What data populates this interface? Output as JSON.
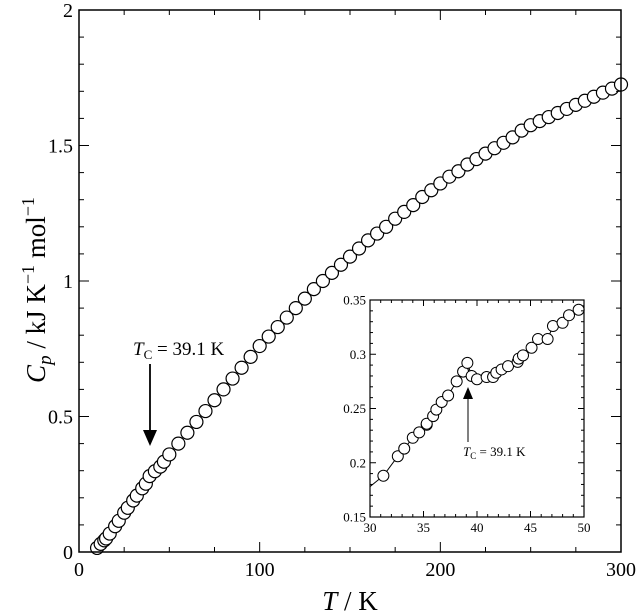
{
  "chart_data": [
    {
      "type": "scatter",
      "xlabel_var": "T",
      "xlabel_unit": "K",
      "ylabel_var": "C",
      "ylabel_sub": "p",
      "ylabel_unit_parts": [
        "kJ K",
        "−1",
        " mol",
        "−1"
      ],
      "xlim": [
        0,
        300
      ],
      "ylim": [
        0,
        2
      ],
      "xticks": [
        "0",
        "100",
        "200",
        "300"
      ],
      "xtick_values": [
        0,
        100,
        200,
        300
      ],
      "yticks": [
        "0",
        "0.5",
        "1",
        "1.5",
        "2"
      ],
      "ytick_values": [
        0,
        0.5,
        1,
        1.5,
        2
      ],
      "grid": false,
      "marker": "open-circle",
      "annotation": {
        "var": "T",
        "sub": "C",
        "text": " = 39.1 K",
        "x": 39.1
      },
      "x": [
        10,
        12,
        14,
        15,
        17,
        20,
        22,
        25,
        27,
        30,
        32,
        35,
        37,
        39.1,
        42,
        45,
        47,
        50,
        55,
        60,
        65,
        70,
        75,
        80,
        85,
        90,
        95,
        100,
        105,
        110,
        115,
        120,
        125,
        130,
        135,
        140,
        145,
        150,
        155,
        160,
        165,
        170,
        175,
        180,
        185,
        190,
        195,
        200,
        205,
        210,
        215,
        220,
        225,
        230,
        235,
        240,
        245,
        250,
        255,
        260,
        265,
        270,
        275,
        280,
        285,
        290,
        295,
        300
      ],
      "y": [
        0.015,
        0.03,
        0.043,
        0.05,
        0.068,
        0.095,
        0.115,
        0.145,
        0.163,
        0.19,
        0.208,
        0.235,
        0.252,
        0.28,
        0.298,
        0.315,
        0.333,
        0.36,
        0.4,
        0.44,
        0.48,
        0.52,
        0.56,
        0.6,
        0.64,
        0.68,
        0.72,
        0.76,
        0.795,
        0.83,
        0.865,
        0.9,
        0.935,
        0.97,
        1.0,
        1.03,
        1.06,
        1.09,
        1.12,
        1.15,
        1.175,
        1.2,
        1.23,
        1.255,
        1.28,
        1.31,
        1.335,
        1.36,
        1.385,
        1.405,
        1.43,
        1.45,
        1.47,
        1.49,
        1.51,
        1.53,
        1.555,
        1.575,
        1.59,
        1.605,
        1.62,
        1.635,
        1.65,
        1.665,
        1.68,
        1.695,
        1.71,
        1.725
      ]
    },
    {
      "type": "scatter",
      "role": "inset",
      "xlim": [
        30,
        50
      ],
      "ylim": [
        0.15,
        0.35
      ],
      "xticks": [
        "30",
        "35",
        "40",
        "45",
        "50"
      ],
      "xtick_values": [
        30,
        35,
        40,
        45,
        50
      ],
      "yticks": [
        "0.15",
        "0.2",
        "0.25",
        "0.3",
        "0.35"
      ],
      "ytick_values": [
        0.15,
        0.2,
        0.25,
        0.3,
        0.35
      ],
      "marker": "open-circle",
      "line": "solid",
      "annotation": {
        "var": "T",
        "sub": "C",
        "text": " = 39.1 K",
        "x": 39.1
      },
      "x": [
        31.25,
        32.6,
        33.2,
        34.0,
        34.6,
        35.3,
        35.3,
        35.9,
        36.2,
        36.7,
        37.3,
        38.1,
        38.7,
        39.1,
        39.5,
        40.0,
        40.9,
        41.5,
        41.8,
        42.3,
        42.9,
        43.8,
        43.9,
        44.3,
        45.1,
        45.7,
        46.6,
        47.1,
        48.0,
        48.6,
        49.5
      ],
      "y": [
        0.188,
        0.206,
        0.213,
        0.223,
        0.228,
        0.235,
        0.236,
        0.243,
        0.249,
        0.256,
        0.262,
        0.275,
        0.284,
        0.292,
        0.28,
        0.277,
        0.279,
        0.279,
        0.283,
        0.286,
        0.289,
        0.293,
        0.296,
        0.299,
        0.306,
        0.314,
        0.314,
        0.326,
        0.329,
        0.336,
        0.341
      ]
    }
  ]
}
